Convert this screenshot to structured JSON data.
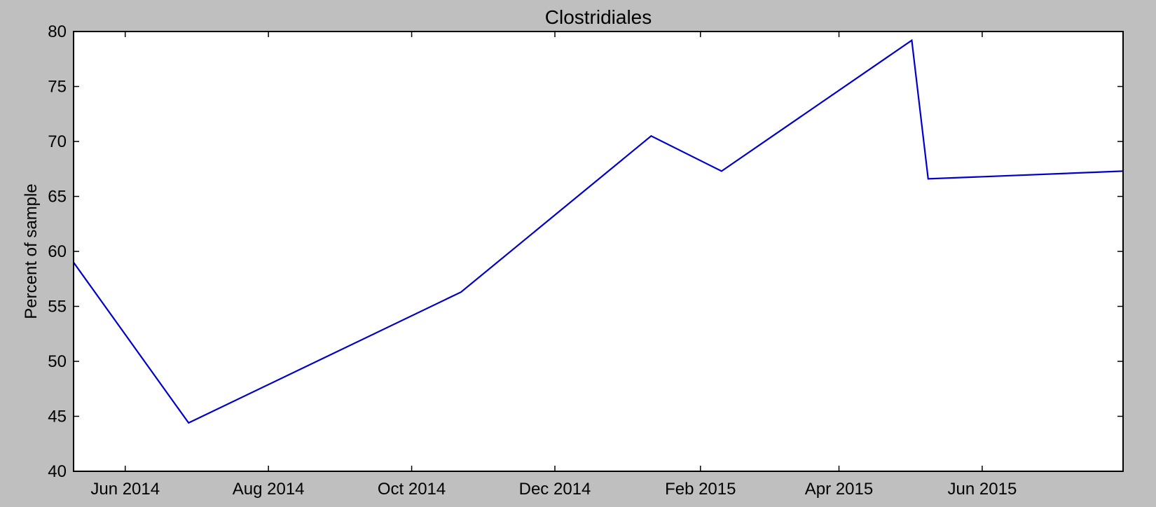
{
  "chart_data": {
    "type": "line",
    "title": "Clostridiales",
    "xlabel": "",
    "ylabel": "Percent of sample",
    "ylim": [
      40,
      80
    ],
    "xlim": [
      "2014-05-10",
      "2015-07-31"
    ],
    "yticks": [
      40,
      45,
      50,
      55,
      60,
      65,
      70,
      75,
      80
    ],
    "xticks": [
      {
        "date": "2014-06-01",
        "label": "Jun 2014"
      },
      {
        "date": "2014-08-01",
        "label": "Aug 2014"
      },
      {
        "date": "2014-10-01",
        "label": "Oct 2014"
      },
      {
        "date": "2014-12-01",
        "label": "Dec 2014"
      },
      {
        "date": "2015-02-01",
        "label": "Feb 2015"
      },
      {
        "date": "2015-04-01",
        "label": "Apr 2015"
      },
      {
        "date": "2015-06-01",
        "label": "Jun 2015"
      }
    ],
    "grid": false,
    "line_color": "#0000cc",
    "series": [
      {
        "x": [
          "2014-05-10",
          "2014-06-28",
          "2014-10-22",
          "2015-01-11",
          "2015-02-10",
          "2015-05-02",
          "2015-05-09",
          "2015-07-31"
        ],
        "values": [
          59.0,
          44.4,
          56.3,
          70.5,
          67.3,
          79.2,
          66.6,
          67.3
        ]
      }
    ]
  }
}
